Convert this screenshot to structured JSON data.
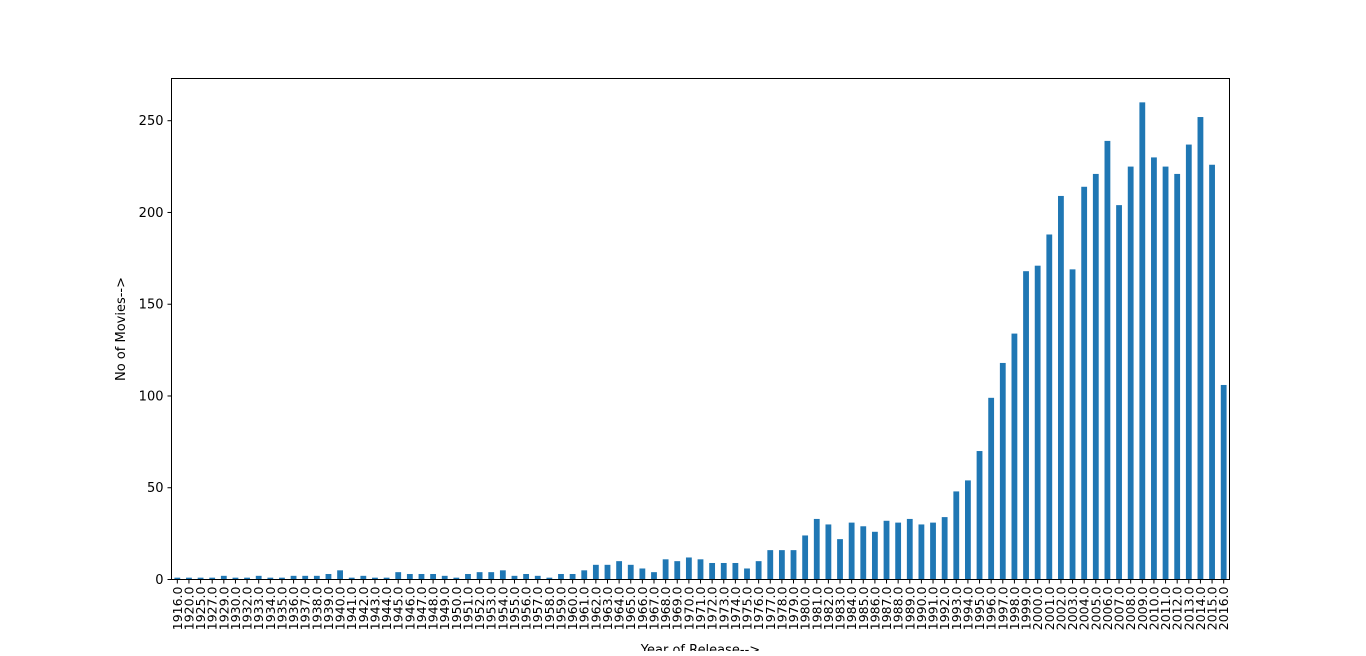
{
  "chart_data": {
    "type": "bar",
    "title": "",
    "xlabel": "Year of Release-->",
    "ylabel": "No of Movies-->",
    "ylim": [
      0,
      273
    ],
    "yticks": [
      0,
      50,
      100,
      150,
      200,
      250
    ],
    "grid": false,
    "bar_color": "#1f77b4",
    "categories": [
      "1916.0",
      "1920.0",
      "1925.0",
      "1927.0",
      "1929.0",
      "1930.0",
      "1932.0",
      "1933.0",
      "1934.0",
      "1935.0",
      "1936.0",
      "1937.0",
      "1938.0",
      "1939.0",
      "1940.0",
      "1941.0",
      "1942.0",
      "1943.0",
      "1944.0",
      "1945.0",
      "1946.0",
      "1947.0",
      "1948.0",
      "1949.0",
      "1950.0",
      "1951.0",
      "1952.0",
      "1953.0",
      "1954.0",
      "1955.0",
      "1956.0",
      "1957.0",
      "1958.0",
      "1959.0",
      "1960.0",
      "1961.0",
      "1962.0",
      "1963.0",
      "1964.0",
      "1965.0",
      "1966.0",
      "1967.0",
      "1968.0",
      "1969.0",
      "1970.0",
      "1971.0",
      "1972.0",
      "1973.0",
      "1974.0",
      "1975.0",
      "1976.0",
      "1977.0",
      "1978.0",
      "1979.0",
      "1980.0",
      "1981.0",
      "1982.0",
      "1983.0",
      "1984.0",
      "1985.0",
      "1986.0",
      "1987.0",
      "1988.0",
      "1989.0",
      "1990.0",
      "1991.0",
      "1992.0",
      "1993.0",
      "1994.0",
      "1995.0",
      "1996.0",
      "1997.0",
      "1998.0",
      "1999.0",
      "2000.0",
      "2001.0",
      "2002.0",
      "2003.0",
      "2004.0",
      "2005.0",
      "2006.0",
      "2007.0",
      "2008.0",
      "2009.0",
      "2010.0",
      "2011.0",
      "2012.0",
      "2013.0",
      "2014.0",
      "2015.0",
      "2016.0"
    ],
    "values": [
      1,
      1,
      1,
      1,
      2,
      1,
      1,
      2,
      1,
      1,
      2,
      2,
      2,
      3,
      5,
      1,
      2,
      1,
      1,
      4,
      3,
      3,
      3,
      2,
      1,
      3,
      4,
      4,
      5,
      2,
      3,
      2,
      1,
      3,
      3,
      5,
      8,
      8,
      10,
      8,
      6,
      4,
      11,
      10,
      12,
      11,
      9,
      9,
      9,
      6,
      10,
      16,
      16,
      16,
      24,
      33,
      30,
      22,
      31,
      29,
      26,
      32,
      31,
      33,
      30,
      31,
      34,
      48,
      54,
      70,
      99,
      118,
      134,
      168,
      171,
      188,
      209,
      169,
      214,
      221,
      239,
      204,
      225,
      260,
      230,
      225,
      221,
      237,
      252,
      226,
      106
    ]
  }
}
